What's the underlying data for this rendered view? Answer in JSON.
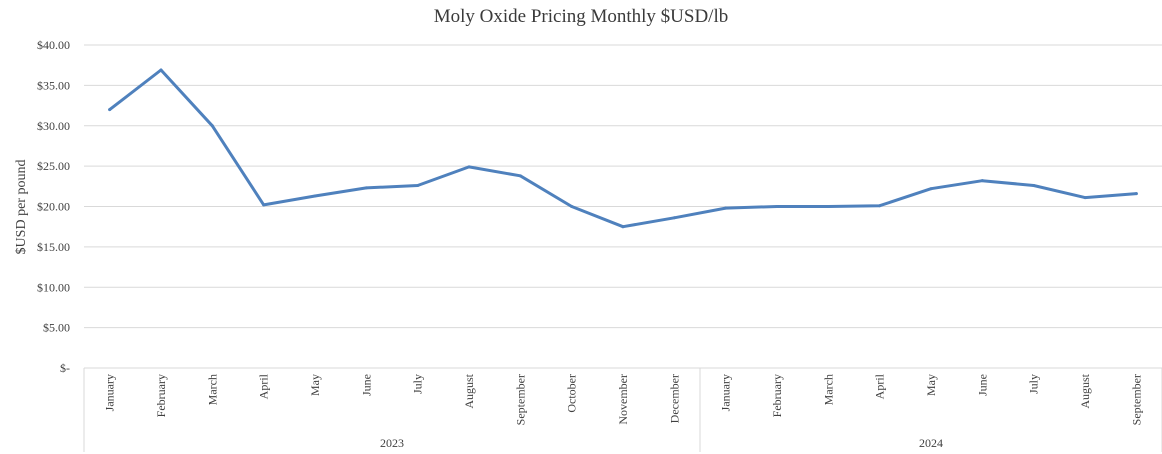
{
  "chart_data": {
    "type": "line",
    "title": "Moly Oxide Pricing Monthly $USD/lb",
    "ylabel": "$USD per pound",
    "xlabel": "",
    "ylim": [
      0,
      40
    ],
    "yticks": [
      "$-",
      "$5.00",
      "$10.00",
      "$15.00",
      "$20.00",
      "$25.00",
      "$30.00",
      "$35.00",
      "$40.00"
    ],
    "ytick_values": [
      0,
      5,
      10,
      15,
      20,
      25,
      30,
      35,
      40
    ],
    "grid": true,
    "legend": "none",
    "line_color": "#4f81bd",
    "groups": [
      {
        "label": "2023",
        "categories": [
          "January",
          "February",
          "March",
          "April",
          "May",
          "June",
          "July",
          "August",
          "September",
          "October",
          "November",
          "December"
        ]
      },
      {
        "label": "2024",
        "categories": [
          "January",
          "February",
          "March",
          "April",
          "May",
          "June",
          "July",
          "August",
          "September"
        ]
      }
    ],
    "series": [
      {
        "values": [
          32.0,
          36.9,
          30.0,
          20.2,
          21.3,
          22.3,
          22.6,
          24.9,
          23.8,
          20.0,
          17.5,
          18.6,
          19.8,
          20.0,
          20.0,
          20.1,
          22.2,
          23.2,
          22.6,
          21.1,
          21.6
        ]
      }
    ]
  }
}
